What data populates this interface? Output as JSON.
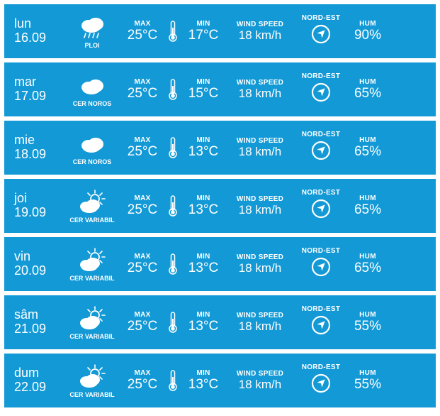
{
  "labels": {
    "max": "MAX",
    "min": "MIN",
    "wind_speed": "WIND SPEED",
    "wind_dir": "NORD-EST",
    "humidity": "HUM"
  },
  "style": {
    "row_bg": "#1399d6",
    "text_color": "#ffffff",
    "icon_stroke": "#ffffff",
    "label_fontsize": 10,
    "value_fontsize": 19,
    "day_fontsize": 18,
    "cond_fontsize": 9
  },
  "conditions": {
    "rain": "PLOI",
    "cloudy": "CER NOROS",
    "partly": "CER VARIABIL"
  },
  "days": [
    {
      "name": "lun",
      "date": "16.09",
      "cond": "rain",
      "max": "25°C",
      "min": "17°C",
      "wind": "18 km/h",
      "hum": "90%"
    },
    {
      "name": "mar",
      "date": "17.09",
      "cond": "cloudy",
      "max": "25°C",
      "min": "15°C",
      "wind": "18 km/h",
      "hum": "65%"
    },
    {
      "name": "mie",
      "date": "18.09",
      "cond": "cloudy",
      "max": "25°C",
      "min": "13°C",
      "wind": "18 km/h",
      "hum": "65%"
    },
    {
      "name": "joi",
      "date": "19.09",
      "cond": "partly",
      "max": "25°C",
      "min": "13°C",
      "wind": "18 km/h",
      "hum": "65%"
    },
    {
      "name": "vin",
      "date": "20.09",
      "cond": "partly",
      "max": "25°C",
      "min": "13°C",
      "wind": "18 km/h",
      "hum": "65%"
    },
    {
      "name": "sâm",
      "date": "21.09",
      "cond": "partly",
      "max": "25°C",
      "min": "13°C",
      "wind": "18 km/h",
      "hum": "55%"
    },
    {
      "name": "dum",
      "date": "22.09",
      "cond": "partly",
      "max": "25°C",
      "min": "13°C",
      "wind": "18 km/h",
      "hum": "55%"
    }
  ]
}
